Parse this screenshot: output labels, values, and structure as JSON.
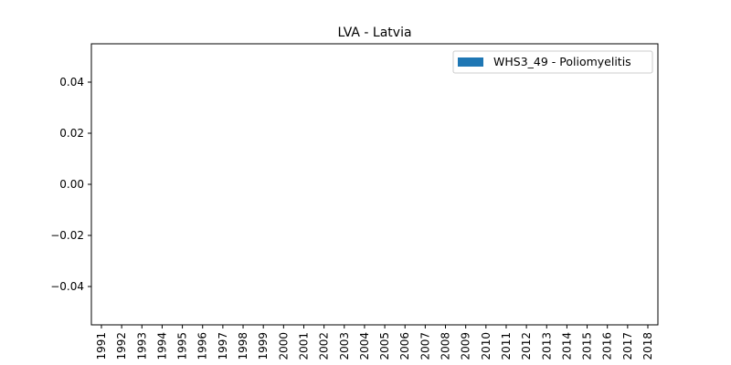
{
  "chart_data": {
    "type": "bar",
    "title": "LVA - Latvia",
    "xlabel": "",
    "ylabel": "",
    "categories": [
      "1991",
      "1992",
      "1993",
      "1994",
      "1995",
      "1996",
      "1997",
      "1998",
      "1999",
      "2000",
      "2001",
      "2002",
      "2003",
      "2004",
      "2005",
      "2006",
      "2007",
      "2008",
      "2009",
      "2010",
      "2011",
      "2012",
      "2013",
      "2014",
      "2015",
      "2016",
      "2017",
      "2018"
    ],
    "series": [
      {
        "name": "WHS3_49 - Poliomyelitis",
        "values": [
          null,
          null,
          null,
          null,
          null,
          null,
          null,
          null,
          null,
          null,
          null,
          null,
          null,
          null,
          null,
          null,
          null,
          null,
          null,
          null,
          null,
          null,
          null,
          null,
          null,
          null,
          null,
          null
        ]
      }
    ],
    "ylim": [
      -0.055,
      0.055
    ],
    "yticks": [
      -0.04,
      -0.02,
      0.0,
      0.02,
      0.04
    ],
    "ytick_labels": [
      "−0.04",
      "−0.02",
      "0.00",
      "0.02",
      "0.04"
    ],
    "legend_position": "upper right",
    "grid": false,
    "colors": {
      "series": "#1f77b4",
      "axes": "#000000"
    }
  }
}
